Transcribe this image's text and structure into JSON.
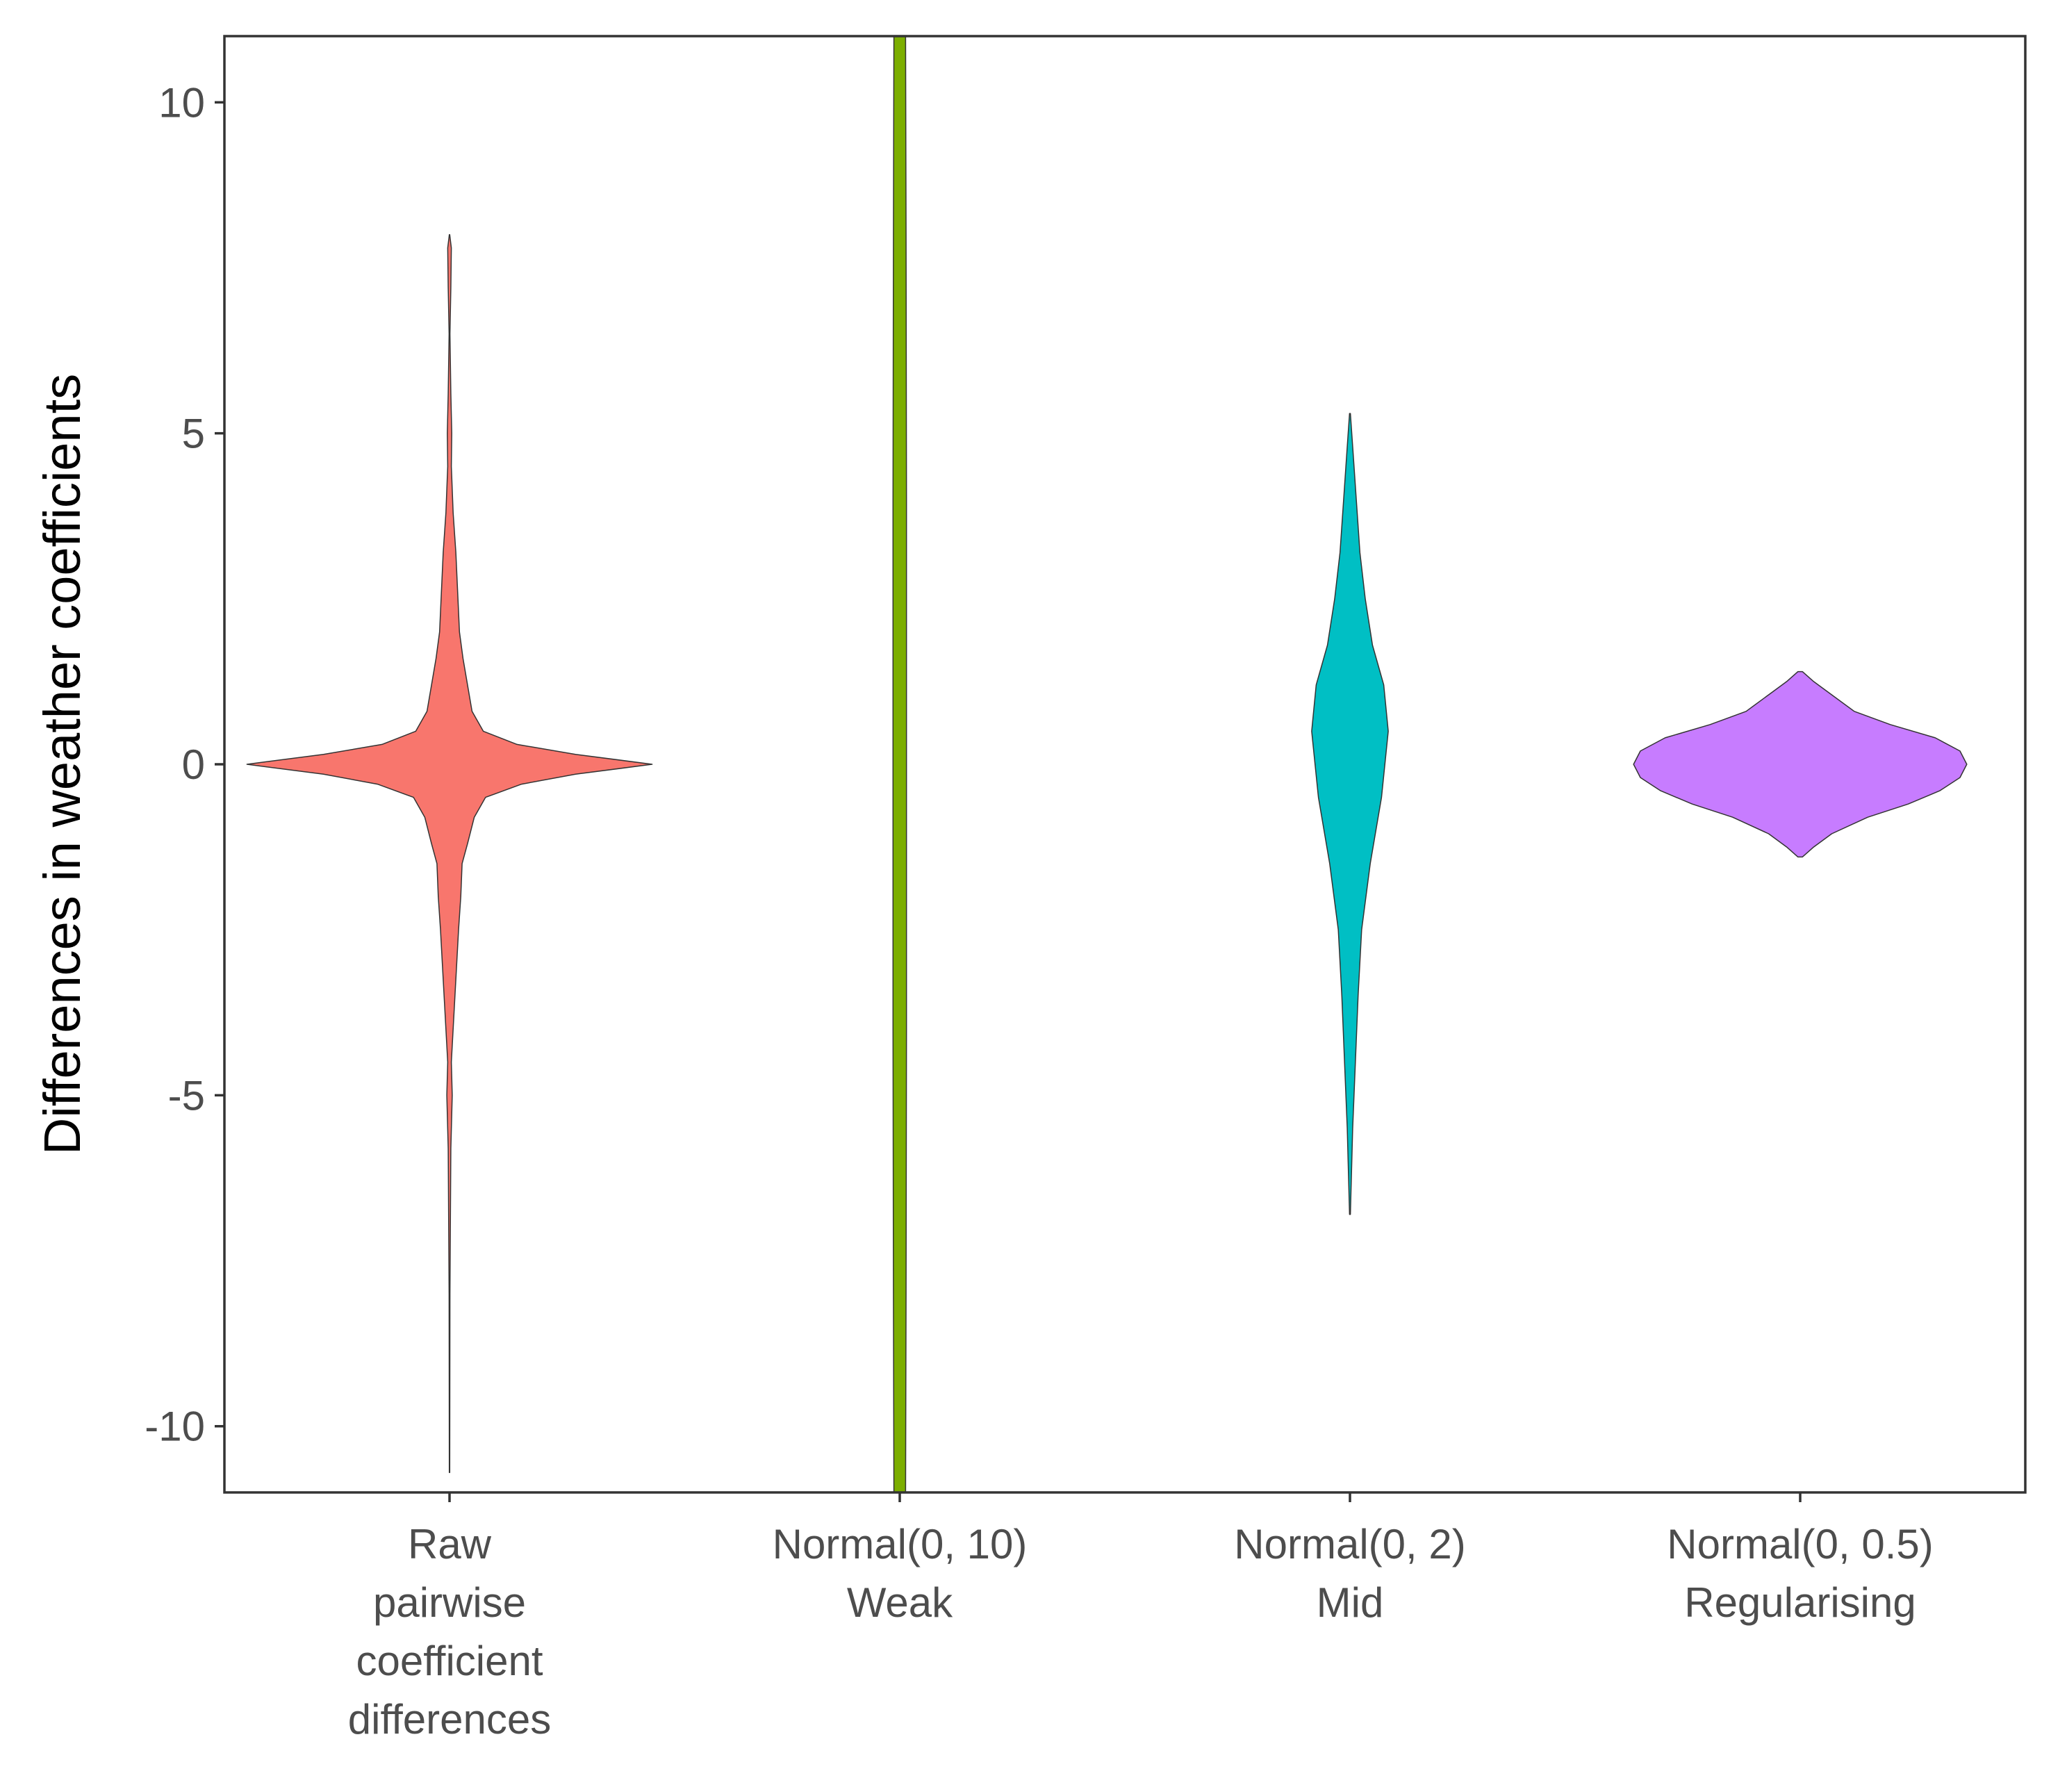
{
  "chart_data": {
    "type": "violin",
    "title": "",
    "xlabel": "",
    "ylabel": "Differences in weather coefficients",
    "ylim": [
      -11,
      11
    ],
    "yticks": [
      -10,
      -5,
      0,
      5,
      10
    ],
    "ytick_labels": [
      "-10",
      "-5",
      "0",
      "5",
      "10"
    ],
    "grid": false,
    "legend": "none",
    "categories": [
      [
        "Raw",
        "pairwise",
        "coefficient",
        "differences"
      ],
      [
        "Normal(0, 10)",
        "Weak"
      ],
      [
        "Normal(0, 2)",
        "Mid"
      ],
      [
        "Normal(0, 0.5)",
        "Regularising"
      ]
    ],
    "series": [
      {
        "color": "#F8766D",
        "y_min": -10.7,
        "y_max": 8.0,
        "max_half_width": 0.45,
        "profile": [
          [
            -10.7,
            0.0005
          ],
          [
            -8.0,
            0.001
          ],
          [
            -5.8,
            0.003
          ],
          [
            -5.0,
            0.006
          ],
          [
            -4.5,
            0.004
          ],
          [
            -3.5,
            0.012
          ],
          [
            -3.0,
            0.016
          ],
          [
            -2.5,
            0.02
          ],
          [
            -2.0,
            0.025
          ],
          [
            -1.5,
            0.028
          ],
          [
            -1.2,
            0.04
          ],
          [
            -0.8,
            0.055
          ],
          [
            -0.5,
            0.08
          ],
          [
            -0.3,
            0.16
          ],
          [
            -0.15,
            0.28
          ],
          [
            0.0,
            0.45
          ],
          [
            0.15,
            0.28
          ],
          [
            0.3,
            0.15
          ],
          [
            0.5,
            0.075
          ],
          [
            0.8,
            0.05
          ],
          [
            1.2,
            0.04
          ],
          [
            1.6,
            0.03
          ],
          [
            2.0,
            0.022
          ],
          [
            2.6,
            0.018
          ],
          [
            3.2,
            0.014
          ],
          [
            3.8,
            0.008
          ],
          [
            4.5,
            0.004
          ],
          [
            5.0,
            0.005
          ],
          [
            5.6,
            0.003
          ],
          [
            6.5,
            0.001
          ],
          [
            7.2,
            0.003
          ],
          [
            7.8,
            0.004
          ],
          [
            8.0,
            0.0005
          ]
        ]
      },
      {
        "color": "#7CAE00",
        "y_min": -11,
        "y_max": 11,
        "max_half_width": 0.015,
        "profile": [
          [
            -11,
            0.013
          ],
          [
            -8,
            0.014
          ],
          [
            -4,
            0.015
          ],
          [
            0,
            0.015
          ],
          [
            4,
            0.015
          ],
          [
            8,
            0.014
          ],
          [
            11,
            0.013
          ]
        ]
      },
      {
        "color": "#00BFC4",
        "y_min": -6.8,
        "y_max": 5.3,
        "max_half_width": 0.085,
        "profile": [
          [
            -6.8,
            0.001
          ],
          [
            -5.5,
            0.006
          ],
          [
            -4.5,
            0.012
          ],
          [
            -3.5,
            0.018
          ],
          [
            -2.5,
            0.026
          ],
          [
            -1.5,
            0.045
          ],
          [
            -0.5,
            0.07
          ],
          [
            0.5,
            0.085
          ],
          [
            1.2,
            0.075
          ],
          [
            1.8,
            0.05
          ],
          [
            2.5,
            0.034
          ],
          [
            3.2,
            0.022
          ],
          [
            4.0,
            0.014
          ],
          [
            4.8,
            0.006
          ],
          [
            5.3,
            0.001
          ]
        ]
      },
      {
        "color": "#C77CFF",
        "y_min": -1.4,
        "y_max": 1.4,
        "max_half_width": 0.37,
        "profile": [
          [
            -1.4,
            0.005
          ],
          [
            -1.25,
            0.03
          ],
          [
            -1.05,
            0.07
          ],
          [
            -0.8,
            0.15
          ],
          [
            -0.6,
            0.24
          ],
          [
            -0.4,
            0.31
          ],
          [
            -0.2,
            0.355
          ],
          [
            0.0,
            0.37
          ],
          [
            0.2,
            0.355
          ],
          [
            0.4,
            0.3
          ],
          [
            0.6,
            0.2
          ],
          [
            0.8,
            0.12
          ],
          [
            1.05,
            0.07
          ],
          [
            1.25,
            0.03
          ],
          [
            1.4,
            0.005
          ]
        ]
      }
    ]
  }
}
